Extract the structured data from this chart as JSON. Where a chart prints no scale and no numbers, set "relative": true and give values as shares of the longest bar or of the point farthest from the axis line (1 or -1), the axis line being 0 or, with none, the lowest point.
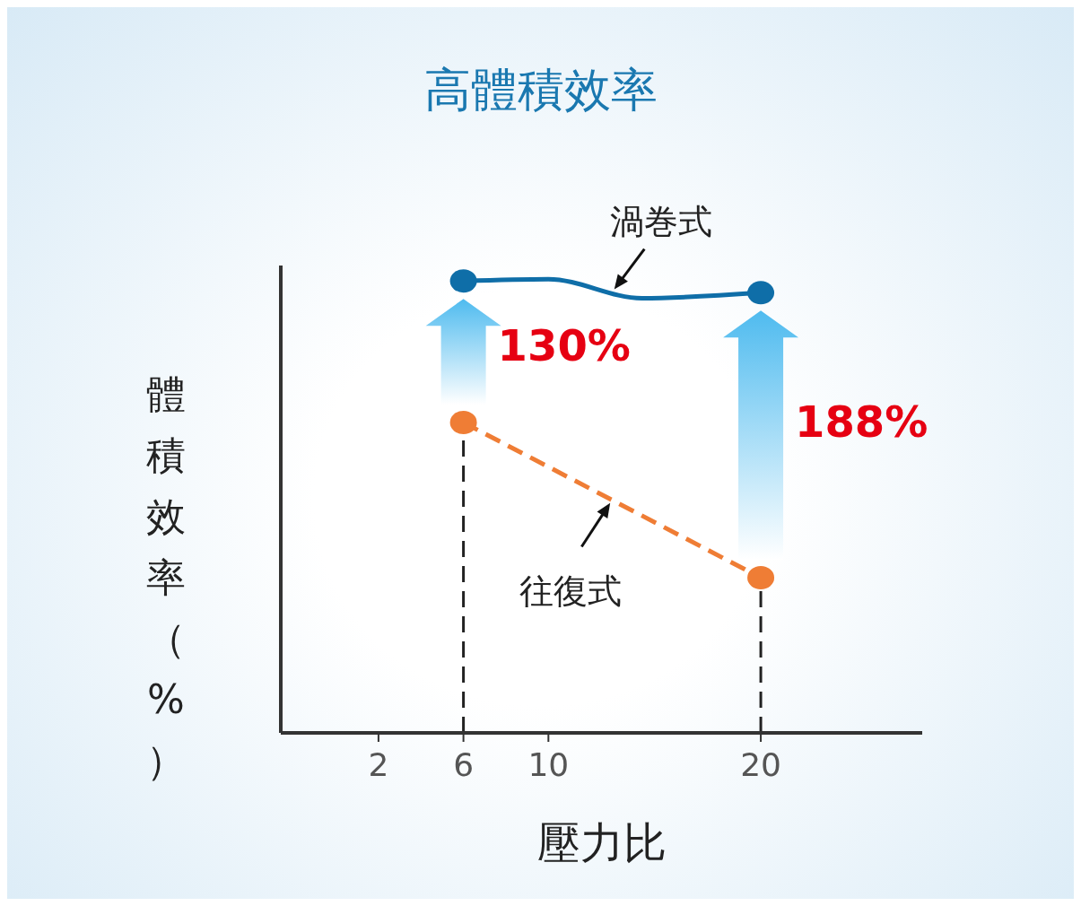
{
  "chart_data": {
    "type": "line",
    "title": "高體積效率",
    "xlabel": "壓力比",
    "ylabel": "體積效率（%）",
    "relative": true,
    "xlim": [
      -2.6,
      27.6
    ],
    "xticks": [
      2,
      6,
      10,
      20
    ],
    "legend": false,
    "grid": false,
    "marker": "circle",
    "series": [
      {
        "name": "渦巻式",
        "color": "#0f6ea8",
        "line_style": "solid",
        "x": [
          6,
          10,
          14.4,
          20
        ],
        "values": [
          0.996,
          1,
          0.958,
          0.97
        ]
      },
      {
        "name": "往復式",
        "color": "#ef7d35",
        "line_style": "dashed",
        "x": [
          6,
          13,
          20
        ],
        "values": [
          0.684,
          0.513,
          0.342
        ]
      }
    ],
    "ref_lines": [
      {
        "axis": "x",
        "value": 6,
        "color": "#222222",
        "line_style": "dashed"
      },
      {
        "axis": "x",
        "value": 20,
        "color": "#222222",
        "line_style": "dashed"
      }
    ],
    "annotations": [
      "130%",
      "188%"
    ]
  }
}
